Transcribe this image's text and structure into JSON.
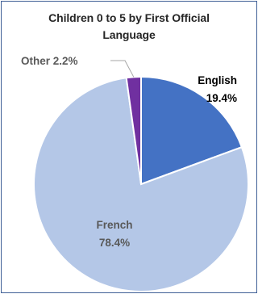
{
  "chart_data": {
    "type": "pie",
    "title_lines": [
      "Children 0 to 5 by First Official",
      "Language"
    ],
    "slices": [
      {
        "name": "English",
        "value": 19.4,
        "value_label": "19.4%",
        "color": "#4472c4",
        "label_color": "#000000"
      },
      {
        "name": "French",
        "value": 78.4,
        "value_label": "78.4%",
        "color": "#b4c7e7",
        "label_color": "#595959"
      },
      {
        "name": "Other",
        "value": 2.2,
        "value_label": "2.2%",
        "color": "#7030a0",
        "label_color": "#595959"
      }
    ]
  }
}
